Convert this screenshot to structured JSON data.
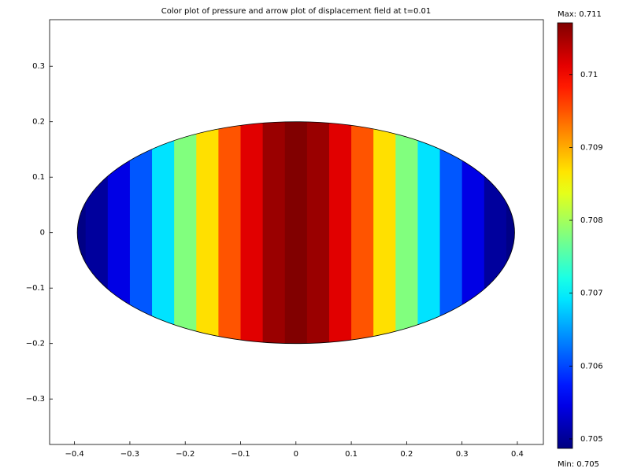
{
  "chart_data": {
    "type": "surface",
    "title": "Color plot of pressure and arrow plot of displacement field at t=0.01",
    "colormap": "jet",
    "domain": {
      "shape": "ellipse",
      "semi_axis_x": 0.395,
      "semi_axis_y": 0.2
    },
    "x": [
      -0.4,
      -0.36,
      -0.32,
      -0.28,
      -0.24,
      -0.2,
      -0.16,
      -0.12,
      -0.08,
      -0.04,
      0,
      0.04,
      0.08,
      0.12,
      0.16,
      0.2,
      0.24,
      0.28,
      0.32,
      0.36,
      0.4
    ],
    "values": [
      0.7049,
      0.70504,
      0.70545,
      0.7061,
      0.7069,
      0.7078,
      0.7087,
      0.7095,
      0.71015,
      0.71056,
      0.7107,
      0.71056,
      0.71015,
      0.7095,
      0.7087,
      0.7078,
      0.7069,
      0.7061,
      0.70545,
      0.70504,
      0.7049
    ],
    "xlim": [
      -0.445,
      0.447
    ],
    "ylim": [
      -0.382,
      0.384
    ],
    "xticks": [
      {
        "value": -0.4,
        "label": "−0.4"
      },
      {
        "value": -0.3,
        "label": "−0.3"
      },
      {
        "value": -0.2,
        "label": "−0.2"
      },
      {
        "value": -0.1,
        "label": "−0.1"
      },
      0,
      0.1,
      0.2,
      0.3,
      0.4
    ],
    "yticks": [
      {
        "value": -0.3,
        "label": "−0.3"
      },
      {
        "value": -0.2,
        "label": "−0.2"
      },
      {
        "value": -0.1,
        "label": "−0.1"
      },
      0,
      0.1,
      0.2,
      0.3
    ],
    "colorbar": {
      "lim": [
        0.70487,
        0.71071
      ],
      "ticks": [
        0.705,
        0.706,
        0.707,
        0.708,
        0.709,
        0.71
      ],
      "max_label": "Max: 0.711",
      "min_label": "Min: 0.705"
    }
  }
}
